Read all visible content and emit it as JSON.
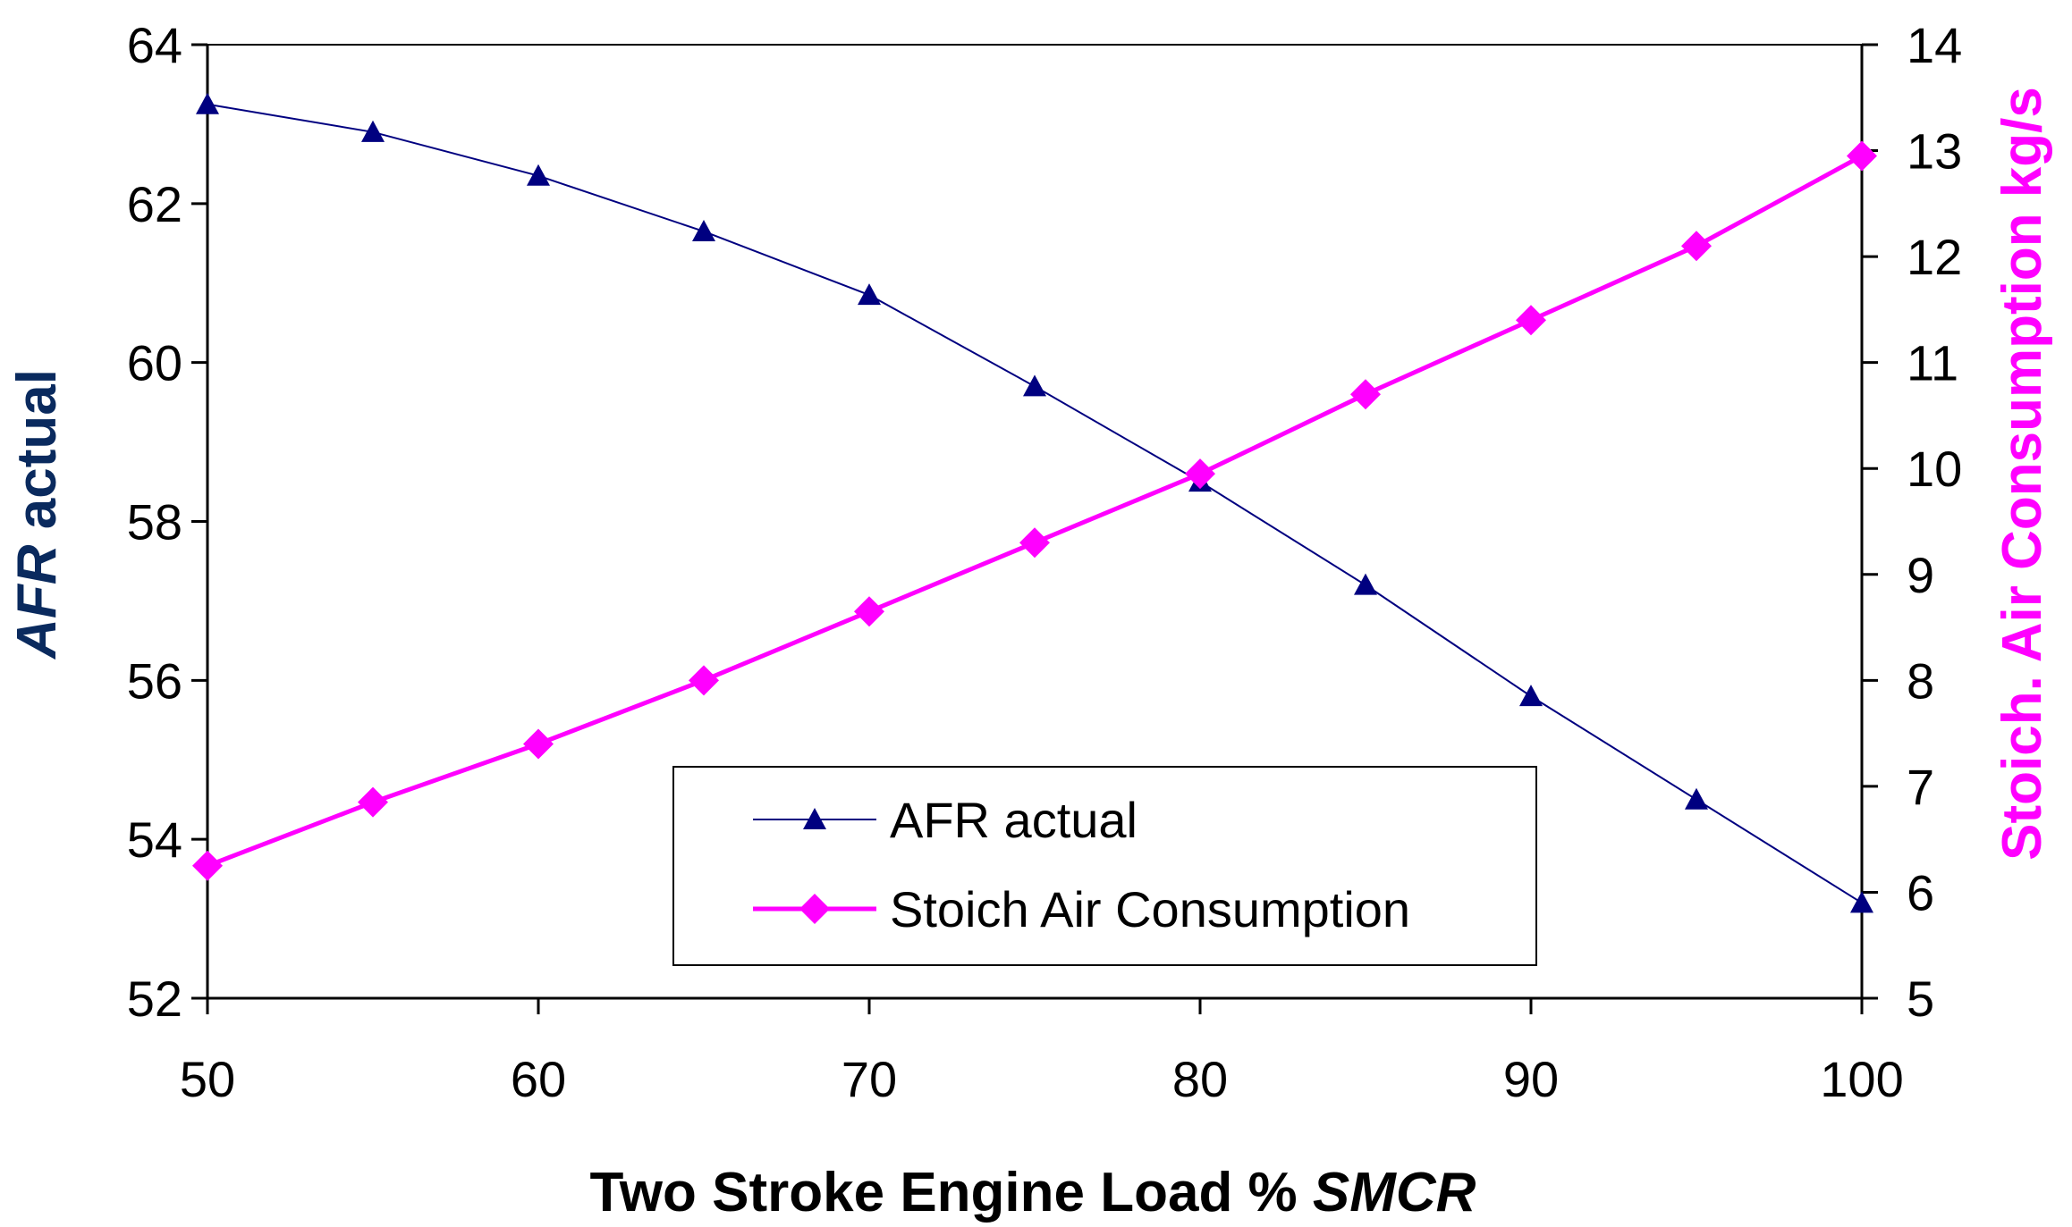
{
  "chart_data": {
    "type": "line",
    "title": "",
    "xlabel": "Two Stroke Engine Load % SMCR",
    "xlabel_plain": "Two Stroke Engine Load % ",
    "xlabel_italic": "SMCR",
    "ylabel_left": "AFR actual",
    "ylabel_left_italic": "AFR",
    "ylabel_left_plain": " actual",
    "ylabel_right": "Stoich. Air Consumption kg/s",
    "x": [
      50,
      55,
      60,
      65,
      70,
      75,
      80,
      85,
      90,
      95,
      100
    ],
    "xlim": [
      50,
      100
    ],
    "xticks": [
      50,
      60,
      70,
      80,
      90,
      100
    ],
    "ylim_left": [
      52,
      64
    ],
    "yticks_left": [
      52,
      54,
      56,
      58,
      60,
      62,
      64
    ],
    "ylim_right": [
      5,
      14
    ],
    "yticks_right": [
      5,
      6,
      7,
      8,
      9,
      10,
      11,
      12,
      13,
      14
    ],
    "grid": false,
    "legend_position": "lower-center",
    "series": [
      {
        "name": "AFR actual",
        "axis": "left",
        "marker": "triangle",
        "color": "#000080",
        "values": [
          63.25,
          62.9,
          62.35,
          61.65,
          60.85,
          59.7,
          58.5,
          57.2,
          55.8,
          54.5,
          53.2
        ]
      },
      {
        "name": "Stoich Air Consumption",
        "axis": "right",
        "marker": "diamond",
        "color": "#ff00ff",
        "values": [
          6.25,
          6.85,
          7.4,
          8.0,
          8.65,
          9.3,
          9.95,
          10.7,
          11.4,
          12.1,
          12.95
        ]
      }
    ]
  },
  "colors": {
    "axis": "#000000",
    "left_axis_title": "#0a2a5e",
    "right_axis_title": "#ff00ff"
  }
}
